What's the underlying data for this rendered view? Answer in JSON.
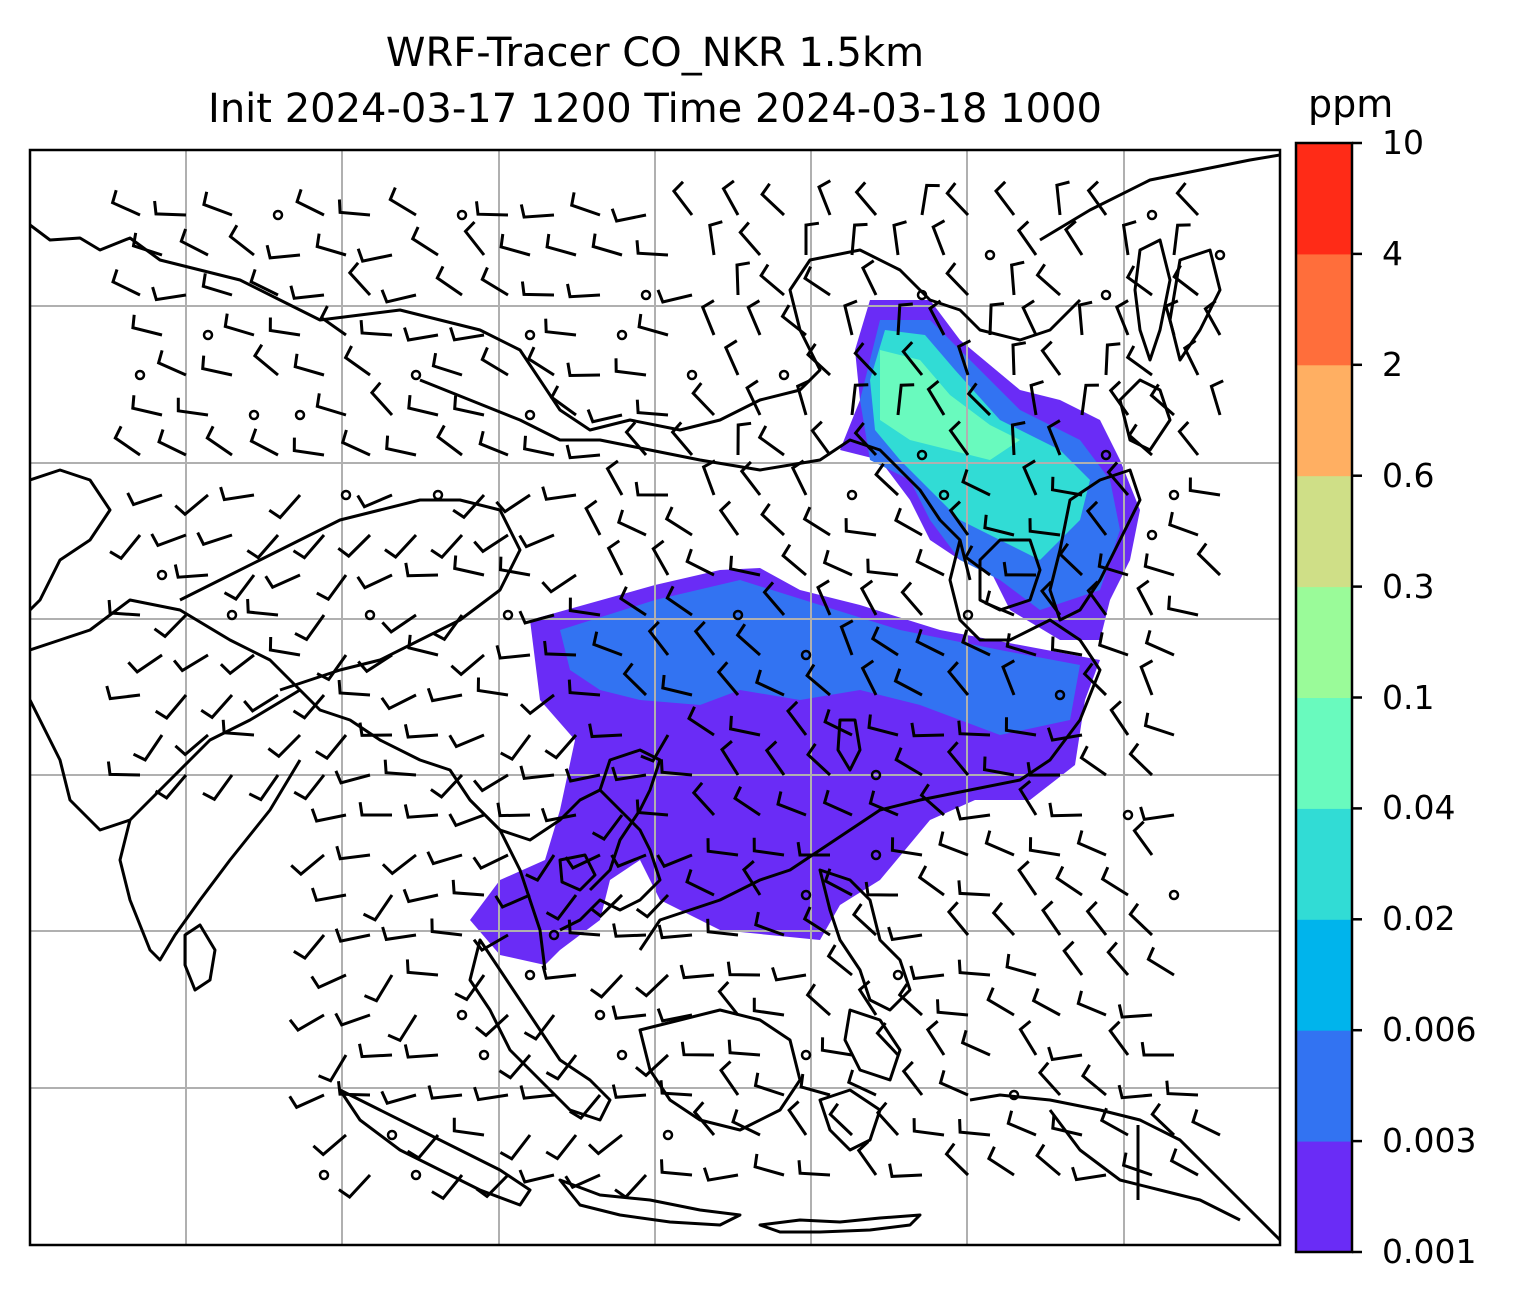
{
  "title": {
    "line1": "WRF-Tracer CO_NKR 1.5km",
    "line2": "Init 2024-03-17 1200 Time 2024-03-18 1000"
  },
  "colorbar": {
    "unit": "ppm",
    "levels": [
      "0.001",
      "0.003",
      "0.006",
      "0.02",
      "0.04",
      "0.1",
      "0.3",
      "0.6",
      "2",
      "4",
      "10"
    ],
    "colors": [
      "#6a2cf6",
      "#3273f2",
      "#00b4ec",
      "#31dcd5",
      "#69fabe",
      "#9afb99",
      "#cfdf87",
      "#ffaf62",
      "#ff6e3b",
      "#ff2b17"
    ]
  },
  "map": {
    "gridlines": true,
    "background": "#ffffff",
    "coastline_color": "#000000",
    "wind_barbs": true
  }
}
